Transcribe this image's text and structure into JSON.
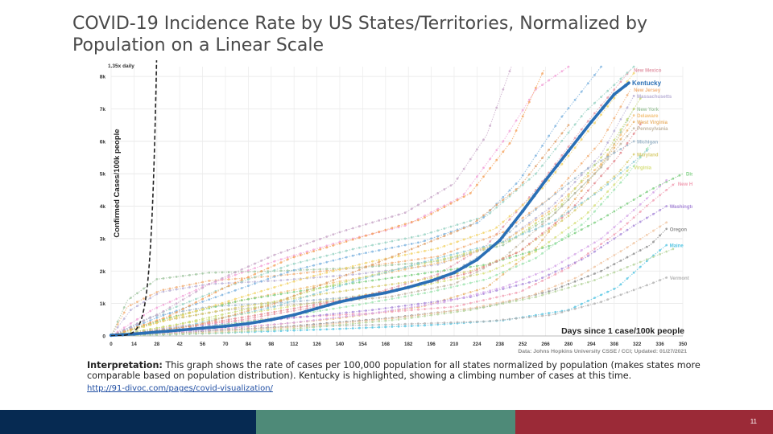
{
  "slide": {
    "title": "COVID-19 Incidence Rate by US States/Territories, Normalized by Population on a Linear Scale",
    "interpretation_label": "Interpretation:",
    "interpretation_text": " This graph shows the rate of cases per 100,000 population for all states normalized by population (makes states more comparable based on population distribution). Kentucky is highlighted, showing a climbing number of cases at this time.",
    "link_text": "http://91-divoc.com/pages/covid-visualization/",
    "slide_number": "11",
    "footer_colors": [
      "#062a52",
      "#4e8a78",
      "#9b2a37"
    ]
  },
  "chart_data": {
    "type": "line",
    "title": "",
    "xlabel": "Days since 1 case/100k people",
    "ylabel": "Confirmed Cases/100k people",
    "xlim": [
      0,
      350
    ],
    "ylim": [
      0,
      8300
    ],
    "x_ticks": [
      "0",
      "14",
      "28",
      "42",
      "56",
      "70",
      "84",
      "98",
      "112",
      "126",
      "140",
      "154",
      "168",
      "182",
      "196",
      "210",
      "224",
      "238",
      "252",
      "266",
      "280",
      "294",
      "308",
      "322",
      "336",
      "350"
    ],
    "y_ticks": [
      "0",
      "1k",
      "2k",
      "3k",
      "4k",
      "5k",
      "6k",
      "7k",
      "8k"
    ],
    "reference_line_label": "1.35x daily",
    "source_note": "Data: Johns Hopkins University CSSE / CCI; Updated: 01/27/2021",
    "highlight": {
      "name": "Kentucky",
      "color": "#2a6fb5",
      "x": [
        0,
        14,
        28,
        42,
        56,
        70,
        84,
        98,
        112,
        126,
        140,
        154,
        168,
        182,
        196,
        210,
        224,
        238,
        252,
        266,
        280,
        294,
        308,
        317
      ],
      "y": [
        20,
        60,
        120,
        180,
        240,
        300,
        380,
        500,
        650,
        850,
        1050,
        1200,
        1330,
        1500,
        1700,
        1950,
        2350,
        2950,
        3850,
        4800,
        5700,
        6600,
        7450,
        7800
      ]
    },
    "series": [
      {
        "name": "New Mexico",
        "color": "#e39aa9",
        "x": [
          0,
          40,
          80,
          120,
          160,
          200,
          230,
          260,
          290,
          318
        ],
        "y": [
          0,
          250,
          500,
          850,
          1300,
          1900,
          2800,
          4500,
          6500,
          8200
        ]
      },
      {
        "name": "New Jersey",
        "color": "#f2b27a",
        "x": [
          0,
          10,
          30,
          60,
          100,
          150,
          200,
          240,
          270,
          300,
          318
        ],
        "y": [
          0,
          900,
          1400,
          1700,
          1850,
          2100,
          2450,
          3200,
          4300,
          6000,
          7600
        ]
      },
      {
        "name": "Massachusetts",
        "color": "#b9b0d6",
        "x": [
          0,
          12,
          30,
          60,
          100,
          150,
          200,
          240,
          270,
          300,
          320
        ],
        "y": [
          0,
          800,
          1350,
          1600,
          1700,
          1900,
          2200,
          2900,
          4000,
          5600,
          7400
        ]
      },
      {
        "name": "New York",
        "color": "#a3c7a2",
        "x": [
          0,
          10,
          28,
          60,
          100,
          150,
          200,
          240,
          270,
          300,
          320
        ],
        "y": [
          0,
          1100,
          1750,
          1950,
          2000,
          2100,
          2300,
          2800,
          3700,
          5200,
          7000
        ]
      },
      {
        "name": "Delaware",
        "color": "#f3c37d",
        "x": [
          0,
          30,
          70,
          120,
          170,
          210,
          240,
          270,
          300,
          320
        ],
        "y": [
          0,
          500,
          1000,
          1500,
          1950,
          2350,
          2900,
          3900,
          5300,
          6800
        ]
      },
      {
        "name": "Virginia",
        "color": "#d7e07d",
        "x": [
          0,
          40,
          90,
          140,
          190,
          230,
          260,
          290,
          318
        ],
        "y": [
          0,
          350,
          750,
          1150,
          1550,
          1950,
          2600,
          3700,
          5200
        ]
      },
      {
        "name": "West Virginia",
        "color": "#e9b46f",
        "x": [
          0,
          40,
          90,
          140,
          190,
          230,
          260,
          290,
          320
        ],
        "y": [
          0,
          120,
          300,
          550,
          900,
          1500,
          2700,
          4600,
          6600
        ]
      },
      {
        "name": "Pennsylvania",
        "color": "#c2b6a2",
        "x": [
          0,
          30,
          70,
          120,
          170,
          210,
          240,
          270,
          300,
          320
        ],
        "y": [
          0,
          450,
          800,
          1000,
          1200,
          1600,
          2400,
          3700,
          5200,
          6400
        ]
      },
      {
        "name": "Michigan",
        "color": "#9db6c9",
        "x": [
          0,
          25,
          60,
          110,
          160,
          200,
          230,
          260,
          290,
          320
        ],
        "y": [
          0,
          600,
          900,
          1050,
          1250,
          1700,
          2600,
          3900,
          5100,
          6000
        ]
      },
      {
        "name": "Maryland",
        "color": "#d8cd73",
        "x": [
          0,
          35,
          80,
          130,
          180,
          220,
          250,
          280,
          310,
          320
        ],
        "y": [
          0,
          500,
          900,
          1300,
          1650,
          2000,
          2600,
          3700,
          5000,
          5600
        ]
      },
      {
        "name": "District of Columbia",
        "color": "#7fcf83",
        "x": [
          0,
          35,
          80,
          130,
          180,
          230,
          270,
          300,
          330,
          350
        ],
        "y": [
          0,
          550,
          1100,
          1500,
          1850,
          2200,
          2800,
          3600,
          4500,
          5000
        ]
      },
      {
        "name": "New Hampshire",
        "color": "#f19fb3",
        "x": [
          0,
          40,
          100,
          160,
          210,
          250,
          280,
          310,
          330,
          345
        ],
        "y": [
          0,
          300,
          550,
          700,
          900,
          1350,
          2100,
          3200,
          4100,
          4700
        ]
      },
      {
        "name": "Washington",
        "color": "#a98ad9",
        "x": [
          0,
          40,
          100,
          160,
          220,
          260,
          290,
          320,
          340
        ],
        "y": [
          0,
          250,
          500,
          800,
          1200,
          1700,
          2400,
          3400,
          4000
        ]
      },
      {
        "name": "Oregon",
        "color": "#8f8f8f",
        "x": [
          0,
          50,
          110,
          170,
          230,
          270,
          300,
          330,
          340
        ],
        "y": [
          0,
          120,
          300,
          550,
          900,
          1400,
          2000,
          2800,
          3300
        ]
      },
      {
        "name": "Maine",
        "color": "#56c6e3",
        "x": [
          0,
          60,
          130,
          190,
          240,
          280,
          310,
          330,
          340
        ],
        "y": [
          0,
          80,
          200,
          320,
          480,
          800,
          1500,
          2400,
          2800
        ]
      },
      {
        "name": "Vermont",
        "color": "#b2b2b2",
        "x": [
          0,
          50,
          110,
          170,
          230,
          270,
          300,
          330,
          340
        ],
        "y": [
          0,
          150,
          280,
          350,
          450,
          650,
          1050,
          1600,
          1800
        ]
      },
      {
        "name": "",
        "color": "#9ad3c4",
        "x": [
          0,
          30,
          70,
          110,
          150,
          190,
          230,
          260,
          290,
          320
        ],
        "y": [
          0,
          700,
          1500,
          2200,
          2700,
          3100,
          3700,
          5000,
          6900,
          8300
        ]
      },
      {
        "name": "",
        "color": "#f2a2d8",
        "x": [
          0,
          25,
          60,
          100,
          140,
          180,
          215,
          240,
          260,
          280
        ],
        "y": [
          0,
          800,
          1600,
          2300,
          2900,
          3400,
          4300,
          6000,
          7600,
          8300
        ]
      },
      {
        "name": "",
        "color": "#7fb4e0",
        "x": [
          0,
          30,
          70,
          110,
          150,
          190,
          225,
          250,
          275,
          300
        ],
        "y": [
          0,
          600,
          1300,
          2000,
          2500,
          2900,
          3500,
          4800,
          6700,
          8300
        ]
      },
      {
        "name": "",
        "color": "#f3d46b",
        "x": [
          0,
          35,
          80,
          120,
          160,
          200,
          235,
          265,
          295,
          320
        ],
        "y": [
          0,
          500,
          1200,
          1800,
          2300,
          2700,
          3300,
          4600,
          6500,
          8100
        ]
      },
      {
        "name": "",
        "color": "#c8d979",
        "x": [
          0,
          40,
          90,
          130,
          170,
          210,
          245,
          275,
          305,
          325
        ],
        "y": [
          0,
          350,
          900,
          1500,
          2000,
          2450,
          2950,
          4000,
          5800,
          7400
        ]
      },
      {
        "name": "",
        "color": "#e3898f",
        "x": [
          0,
          40,
          90,
          140,
          185,
          220,
          250,
          280,
          310,
          325
        ],
        "y": [
          0,
          250,
          650,
          1100,
          1550,
          1950,
          2600,
          3800,
          5500,
          6600
        ]
      },
      {
        "name": "",
        "color": "#9fe3b0",
        "x": [
          0,
          45,
          100,
          150,
          195,
          230,
          260,
          290,
          315,
          330
        ],
        "y": [
          0,
          200,
          550,
          950,
          1350,
          1750,
          2400,
          3500,
          4900,
          5900
        ]
      },
      {
        "name": "",
        "color": "#d6a7e8",
        "x": [
          0,
          50,
          110,
          160,
          205,
          240,
          270,
          300,
          325,
          340
        ],
        "y": [
          0,
          150,
          400,
          700,
          1050,
          1500,
          2100,
          3000,
          4100,
          4800
        ]
      },
      {
        "name": "",
        "color": "#f0c5a3",
        "x": [
          0,
          55,
          120,
          175,
          220,
          255,
          285,
          315,
          340
        ],
        "y": [
          0,
          100,
          300,
          550,
          850,
          1200,
          1800,
          2700,
          3500
        ]
      },
      {
        "name": "",
        "color": "#8ccad6",
        "x": [
          0,
          45,
          100,
          150,
          200,
          240,
          270,
          300,
          330
        ],
        "y": [
          0,
          300,
          900,
          1700,
          2400,
          2900,
          3500,
          4500,
          5800
        ]
      },
      {
        "name": "",
        "color": "#e0a06a",
        "x": [
          0,
          50,
          100,
          145,
          185,
          220,
          250,
          280
        ],
        "y": [
          0,
          300,
          1000,
          1900,
          2700,
          3400,
          4600,
          6500
        ]
      },
      {
        "name": "",
        "color": "#b6d49d",
        "x": [
          0,
          60,
          120,
          175,
          220,
          260,
          295,
          325,
          345
        ],
        "y": [
          0,
          80,
          250,
          500,
          800,
          1200,
          1700,
          2300,
          2700
        ]
      },
      {
        "name": "",
        "color": "#c9a9c9",
        "x": [
          0,
          30,
          60,
          100,
          140,
          180,
          210,
          230,
          245
        ],
        "y": [
          0,
          700,
          1600,
          2500,
          3200,
          3800,
          4700,
          6200,
          8300
        ]
      },
      {
        "name": "",
        "color": "#f5a45f",
        "x": [
          0,
          35,
          70,
          110,
          150,
          190,
          220,
          245,
          265
        ],
        "y": [
          0,
          600,
          1500,
          2400,
          3000,
          3600,
          4400,
          6000,
          8200
        ]
      }
    ]
  }
}
